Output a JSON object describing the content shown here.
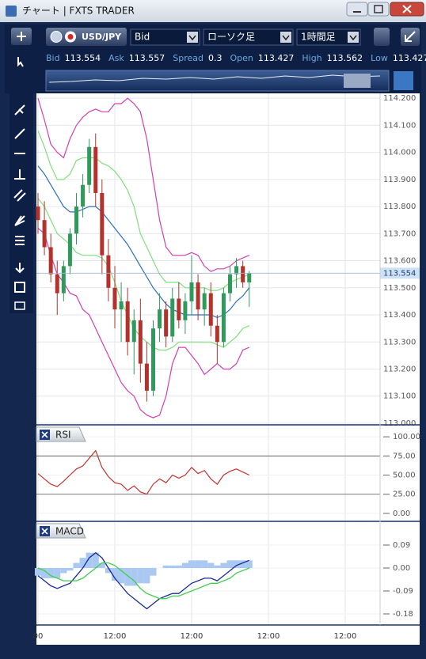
{
  "window": {
    "title": "チャート | FXTS TRADER"
  },
  "toolbar": {
    "symbol": "USD/JPY",
    "price_side": "Bid",
    "chart_type": "ローソク足",
    "timeframe": "1時間足"
  },
  "quote": {
    "items": [
      {
        "label": "Bid",
        "value": "113.554"
      },
      {
        "label": "Ask",
        "value": "113.557"
      },
      {
        "label": "Spread",
        "value": "0.3"
      },
      {
        "label": "Open",
        "value": "113.427"
      },
      {
        "label": "High",
        "value": "113.562"
      },
      {
        "label": "Low",
        "value": "113.427"
      }
    ]
  },
  "time_axis": {
    "ticks": [
      {
        "value": 0,
        "label": "00"
      },
      {
        "value": 12,
        "label": "12:00"
      },
      {
        "value": 24,
        "label": "12:00"
      },
      {
        "value": 36,
        "label": "12:00"
      },
      {
        "value": 48,
        "label": "12:00"
      }
    ]
  },
  "price_chart": {
    "type": "candlestick",
    "ylim": [
      112.994,
      114.218
    ],
    "up_color": "#2f9a5c",
    "down_color": "#b3322c",
    "current_price": 113.554,
    "yticks": [
      {
        "value": 113.0,
        "label": "113.000"
      },
      {
        "value": 113.1,
        "label": "113.100"
      },
      {
        "value": 113.2,
        "label": "113.200"
      },
      {
        "value": 113.3,
        "label": "113.300"
      },
      {
        "value": 113.4,
        "label": "113.400"
      },
      {
        "value": 113.5,
        "label": "113.500"
      },
      {
        "value": 113.6,
        "label": "113.600"
      },
      {
        "value": 113.7,
        "label": "113.700"
      },
      {
        "value": 113.8,
        "label": "113.800"
      },
      {
        "value": 113.9,
        "label": "113.900"
      },
      {
        "value": 114.0,
        "label": "114.000"
      },
      {
        "value": 114.1,
        "label": "114.100"
      },
      {
        "value": 114.2,
        "label": "114.200"
      }
    ],
    "open": [
      113.8,
      113.75,
      113.65,
      113.55,
      113.48,
      113.58,
      113.7,
      113.8,
      113.88,
      114.02,
      113.85,
      113.62,
      113.5,
      113.42,
      113.45,
      113.3,
      113.38,
      113.22,
      113.12,
      113.35,
      113.42,
      113.32,
      113.46,
      113.38,
      113.45,
      113.52,
      113.42,
      113.48,
      113.36,
      113.3,
      113.48,
      113.55,
      113.58,
      113.52
    ],
    "high": [
      113.85,
      113.82,
      113.7,
      113.6,
      113.6,
      113.72,
      113.85,
      113.92,
      114.05,
      114.07,
      113.9,
      113.68,
      113.58,
      113.52,
      113.5,
      113.42,
      113.46,
      113.3,
      113.38,
      113.48,
      113.45,
      113.5,
      113.52,
      113.48,
      113.62,
      113.55,
      113.5,
      113.52,
      113.4,
      113.5,
      113.58,
      113.61,
      113.6,
      113.562
    ],
    "low": [
      113.7,
      113.62,
      113.52,
      113.4,
      113.45,
      113.55,
      113.66,
      113.76,
      113.85,
      113.8,
      113.55,
      113.45,
      113.35,
      113.3,
      113.25,
      113.18,
      113.15,
      113.08,
      113.1,
      113.3,
      113.28,
      113.3,
      113.35,
      113.33,
      113.4,
      113.38,
      113.36,
      113.32,
      113.22,
      113.28,
      113.45,
      113.5,
      113.5,
      113.43
    ],
    "close": [
      113.75,
      113.65,
      113.55,
      113.48,
      113.58,
      113.7,
      113.8,
      113.88,
      114.02,
      113.85,
      113.62,
      113.5,
      113.42,
      113.45,
      113.3,
      113.38,
      113.22,
      113.12,
      113.35,
      113.42,
      113.32,
      113.46,
      113.38,
      113.45,
      113.52,
      113.42,
      113.48,
      113.36,
      113.3,
      113.48,
      113.55,
      113.58,
      113.52,
      113.554
    ],
    "series": [
      {
        "color": "#d63fb0",
        "values": [
          114.2,
          114.12,
          114.03,
          114.0,
          113.98,
          114.05,
          114.1,
          114.13,
          114.15,
          114.16,
          114.15,
          114.15,
          114.18,
          114.18,
          114.2,
          114.18,
          114.15,
          114.05,
          113.9,
          113.75,
          113.65,
          113.62,
          113.62,
          113.62,
          113.63,
          113.62,
          113.58,
          113.56,
          113.57,
          113.57,
          113.58,
          113.6,
          113.61,
          113.62
        ]
      },
      {
        "color": "#7fe07a",
        "values": [
          114.08,
          114.02,
          113.95,
          113.9,
          113.9,
          113.92,
          113.97,
          113.98,
          113.98,
          113.98,
          113.96,
          113.95,
          113.93,
          113.9,
          113.86,
          113.8,
          113.7,
          113.65,
          113.6,
          113.55,
          113.52,
          113.52,
          113.52,
          113.5,
          113.5,
          113.5,
          113.5,
          113.49,
          113.49,
          113.5,
          113.52,
          113.53,
          113.54,
          113.55
        ]
      },
      {
        "color": "#2a6fc0",
        "values": [
          113.95,
          113.92,
          113.88,
          113.84,
          113.8,
          113.78,
          113.78,
          113.79,
          113.8,
          113.8,
          113.78,
          113.75,
          113.72,
          113.69,
          113.66,
          113.62,
          113.58,
          113.54,
          113.5,
          113.47,
          113.44,
          113.42,
          113.41,
          113.4,
          113.4,
          113.4,
          113.4,
          113.4,
          113.39,
          113.4,
          113.42,
          113.45,
          113.47,
          113.5
        ]
      },
      {
        "color": "#7fe07a",
        "values": [
          113.83,
          113.8,
          113.75,
          113.7,
          113.68,
          113.66,
          113.63,
          113.62,
          113.62,
          113.62,
          113.61,
          113.58,
          113.52,
          113.45,
          113.4,
          113.35,
          113.32,
          113.3,
          113.28,
          113.27,
          113.27,
          113.28,
          113.3,
          113.3,
          113.3,
          113.3,
          113.3,
          113.3,
          113.29,
          113.28,
          113.3,
          113.32,
          113.35,
          113.36
        ]
      },
      {
        "color": "#d63fb0",
        "values": [
          113.72,
          113.7,
          113.62,
          113.55,
          113.52,
          113.48,
          113.47,
          113.42,
          113.4,
          113.35,
          113.3,
          113.25,
          113.2,
          113.15,
          113.12,
          113.1,
          113.05,
          113.03,
          113.02,
          113.03,
          113.1,
          113.22,
          113.28,
          113.28,
          113.25,
          113.22,
          113.18,
          113.2,
          113.22,
          113.2,
          113.2,
          113.22,
          113.27,
          113.28
        ]
      }
    ]
  },
  "rsi_chart": {
    "type": "line",
    "title": "RSI",
    "ylim": [
      -10.4,
      114.6
    ],
    "guide_lines": [
      75,
      25
    ],
    "yticks": [
      {
        "value": 100,
        "label": "100.00"
      },
      {
        "value": 75,
        "label": "75.00"
      },
      {
        "value": 50,
        "label": "50.00"
      },
      {
        "value": 25,
        "label": "25.00"
      },
      {
        "value": 0,
        "label": "0.00"
      }
    ],
    "series": [
      {
        "color": "#c8312c",
        "values": [
          52,
          45,
          38,
          35,
          42,
          50,
          58,
          62,
          72,
          82,
          60,
          48,
          40,
          38,
          30,
          36,
          28,
          25,
          38,
          45,
          40,
          50,
          46,
          50,
          60,
          52,
          56,
          45,
          38,
          50,
          55,
          58,
          54,
          50
        ]
      }
    ]
  },
  "macd_chart": {
    "type": "macd",
    "title": "MACD",
    "ylim": [
      -0.2235,
      0.18
    ],
    "yticks": [
      0.09,
      {
        "value": 0,
        "label": "0.00"
      },
      -0.09,
      -0.18
    ],
    "series": [
      {
        "kind": "bar",
        "color": "#a9c8f2",
        "values": [
          -0.03,
          -0.04,
          -0.04,
          -0.04,
          -0.02,
          -0.01,
          0.02,
          0.04,
          0.06,
          0.06,
          0.02,
          -0.02,
          -0.05,
          -0.06,
          -0.07,
          -0.07,
          -0.06,
          -0.06,
          -0.03,
          0.0,
          0.01,
          0.01,
          0.01,
          0.02,
          0.03,
          0.03,
          0.03,
          0.02,
          0.01,
          0.02,
          0.03,
          0.03,
          0.03,
          0.03
        ]
      },
      {
        "kind": "line",
        "color": "#1b2a9c",
        "values": [
          -0.03,
          -0.05,
          -0.07,
          -0.08,
          -0.07,
          -0.06,
          -0.03,
          0.0,
          0.04,
          0.06,
          0.04,
          0.0,
          -0.04,
          -0.07,
          -0.1,
          -0.12,
          -0.14,
          -0.16,
          -0.14,
          -0.12,
          -0.11,
          -0.1,
          -0.1,
          -0.08,
          -0.06,
          -0.05,
          -0.04,
          -0.04,
          -0.05,
          -0.03,
          -0.01,
          0.01,
          0.02,
          0.03
        ]
      },
      {
        "kind": "line",
        "color": "#3fcf4a",
        "values": [
          0.0,
          -0.01,
          -0.03,
          -0.04,
          -0.05,
          -0.05,
          -0.05,
          -0.04,
          -0.02,
          0.0,
          0.02,
          0.02,
          0.01,
          -0.01,
          -0.03,
          -0.05,
          -0.08,
          -0.1,
          -0.11,
          -0.12,
          -0.12,
          -0.11,
          -0.11,
          -0.1,
          -0.09,
          -0.08,
          -0.07,
          -0.06,
          -0.06,
          -0.05,
          -0.04,
          -0.02,
          -0.01,
          0.0
        ]
      }
    ]
  }
}
